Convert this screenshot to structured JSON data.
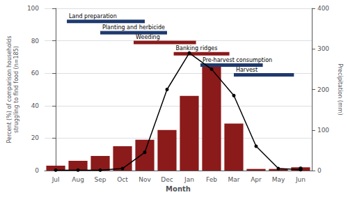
{
  "chart_data": {
    "type": "bar",
    "categories": [
      "Jul",
      "Aug",
      "Sep",
      "Oct",
      "Nov",
      "Dec",
      "Jan",
      "Feb",
      "Mar",
      "Apr",
      "May",
      "Jun"
    ],
    "xlabel": "Month",
    "ylabel": "Percent (%) of comparison households\nstruggling to find food (n=185)",
    "y2label": "Precipitation (mm)",
    "ylim": [
      0,
      100
    ],
    "yticks": [
      0,
      20,
      40,
      60,
      80,
      100
    ],
    "y2lim": [
      0,
      400
    ],
    "y2ticks": [
      0,
      100,
      200,
      300,
      400
    ],
    "grid": true,
    "series": [
      {
        "type": "bar",
        "color": "#8B1A1A",
        "values": [
          3,
          6,
          9,
          15,
          19,
          25,
          46,
          65,
          29,
          1,
          1,
          2
        ]
      },
      {
        "type": "line",
        "axis": "y2",
        "color": "#000000",
        "marker": "o",
        "values": [
          1,
          1,
          1,
          5,
          45,
          200,
          290,
          250,
          185,
          60,
          5,
          2
        ]
      },
      {
        "type": "scatter",
        "axis": "y2",
        "color": "#000000",
        "marker": "o",
        "values": [
          null,
          null,
          null,
          null,
          null,
          null,
          null,
          null,
          null,
          null,
          null,
          5
        ]
      }
    ],
    "annotations": [
      {
        "text": "Land preparation",
        "x0": 0.5,
        "x1": 4.0,
        "y": 92,
        "color": "#1F3A6E"
      },
      {
        "text": "Planting and herbicide",
        "x0": 2.0,
        "x1": 5.0,
        "y": 85,
        "color": "#1F3A6E"
      },
      {
        "text": "Weeding",
        "x0": 3.5,
        "x1": 6.3,
        "y": 79,
        "color": "#8B1A1A"
      },
      {
        "text": "Banking ridges",
        "x0": 5.3,
        "x1": 7.8,
        "y": 72,
        "color": "#8B1A1A"
      },
      {
        "text": "Pre-harvest consumption",
        "x0": 6.5,
        "x1": 9.3,
        "y": 65,
        "color": "#1F3A6E"
      },
      {
        "text": "Harvest",
        "x0": 8.0,
        "x1": 10.7,
        "y": 59,
        "color": "#1F3A6E"
      }
    ]
  }
}
